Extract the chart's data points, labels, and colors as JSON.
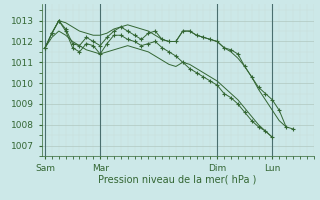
{
  "background_color": "#cce8e8",
  "plot_bg_color": "#cce8e8",
  "grid_major_color": "#aaaaaa",
  "grid_minor_color": "#cccccc",
  "line_color": "#336633",
  "marker_color": "#336633",
  "vline_color": "#336633",
  "xlabel": "Pression niveau de la mer( hPa )",
  "yticks": [
    1007,
    1008,
    1009,
    1010,
    1011,
    1012,
    1013
  ],
  "ylim": [
    1006.5,
    1013.8
  ],
  "xtick_labels": [
    "Sam",
    "Mar",
    "Dim",
    "Lun"
  ],
  "xtick_positions": [
    0,
    16,
    50,
    66
  ],
  "xlim": [
    -1,
    78
  ],
  "vline_positions": [
    0,
    16,
    50,
    66
  ],
  "series": [
    {
      "x": [
        0,
        2,
        4,
        6,
        8,
        10,
        12,
        14,
        16,
        18,
        20,
        22,
        24,
        26,
        28,
        30,
        32,
        34,
        36,
        38,
        40,
        42,
        44,
        46,
        48,
        50,
        52,
        54,
        56,
        58,
        60,
        62,
        64,
        66,
        68,
        70,
        72,
        74,
        76,
        78
      ],
      "y": [
        1011.7,
        1012.4,
        1013.0,
        1012.9,
        1012.7,
        1012.5,
        1012.4,
        1012.3,
        1012.3,
        1012.4,
        1012.6,
        1012.7,
        1012.8,
        1012.7,
        1012.6,
        1012.5,
        1012.3,
        1012.1,
        1012.0,
        1012.0,
        1012.5,
        1012.5,
        1012.3,
        1012.2,
        1012.1,
        1012.0,
        1011.7,
        1011.5,
        1011.2,
        1010.8,
        1010.3,
        1009.7,
        1009.2,
        1008.7,
        1008.2,
        1007.9,
        null,
        null,
        null,
        null
      ],
      "has_markers": false
    },
    {
      "x": [
        0,
        2,
        4,
        6,
        8,
        10,
        12,
        14,
        16,
        18,
        20,
        22,
        24,
        26,
        28,
        30,
        32,
        34,
        36,
        38,
        40,
        42,
        44,
        46,
        48,
        50,
        52,
        54,
        56,
        58,
        60,
        62,
        64,
        66,
        68,
        70,
        72,
        74,
        76,
        78
      ],
      "y": [
        1011.7,
        1012.2,
        1012.5,
        1012.3,
        1012.0,
        1011.8,
        1011.6,
        1011.5,
        1011.4,
        1011.5,
        1011.6,
        1011.7,
        1011.8,
        1011.7,
        1011.6,
        1011.5,
        1011.3,
        1011.1,
        1010.9,
        1010.8,
        1011.0,
        1010.9,
        1010.7,
        1010.5,
        1010.3,
        1010.1,
        1009.8,
        1009.5,
        1009.2,
        1008.8,
        1008.4,
        1008.0,
        1007.7,
        1007.4,
        null,
        null,
        null,
        null,
        null,
        null
      ],
      "has_markers": false
    },
    {
      "x": [
        0,
        2,
        4,
        6,
        8,
        10,
        12,
        14,
        16,
        18,
        20,
        22,
        24,
        26,
        28,
        30,
        32,
        34,
        36,
        38,
        40,
        42,
        44,
        46,
        48,
        50,
        52,
        54,
        56,
        58,
        60,
        62,
        64,
        66,
        68,
        70,
        72,
        74,
        76,
        78
      ],
      "y": [
        1011.7,
        1012.4,
        1013.0,
        1012.6,
        1011.9,
        1011.8,
        1012.2,
        1012.0,
        1011.8,
        1012.2,
        1012.5,
        1012.7,
        1012.5,
        1012.3,
        1012.1,
        1012.4,
        1012.5,
        1012.1,
        1012.0,
        1012.0,
        1012.5,
        1012.5,
        1012.3,
        1012.2,
        1012.1,
        1012.0,
        1011.7,
        1011.6,
        1011.4,
        1010.8,
        1010.3,
        1009.8,
        1009.5,
        1009.2,
        1008.7,
        1007.9,
        1007.8,
        null,
        null,
        null
      ],
      "has_markers": true
    },
    {
      "x": [
        0,
        2,
        4,
        6,
        8,
        10,
        12,
        14,
        16,
        18,
        20,
        22,
        24,
        26,
        28,
        30,
        32,
        34,
        36,
        38,
        40,
        42,
        44,
        46,
        48,
        50,
        52,
        54,
        56,
        58,
        60,
        62,
        64,
        66,
        68,
        70,
        72,
        74,
        76,
        78
      ],
      "y": [
        1011.7,
        1012.4,
        1013.0,
        1012.5,
        1011.7,
        1011.5,
        1011.9,
        1011.8,
        1011.4,
        1011.9,
        1012.3,
        1012.3,
        1012.1,
        1012.0,
        1011.8,
        1011.9,
        1012.0,
        1011.7,
        1011.5,
        1011.3,
        1011.0,
        1010.7,
        1010.5,
        1010.3,
        1010.1,
        1009.9,
        1009.5,
        1009.3,
        1009.0,
        1008.6,
        1008.2,
        1007.9,
        1007.7,
        1007.4,
        null,
        null,
        null,
        null,
        null,
        null
      ],
      "has_markers": true
    }
  ]
}
